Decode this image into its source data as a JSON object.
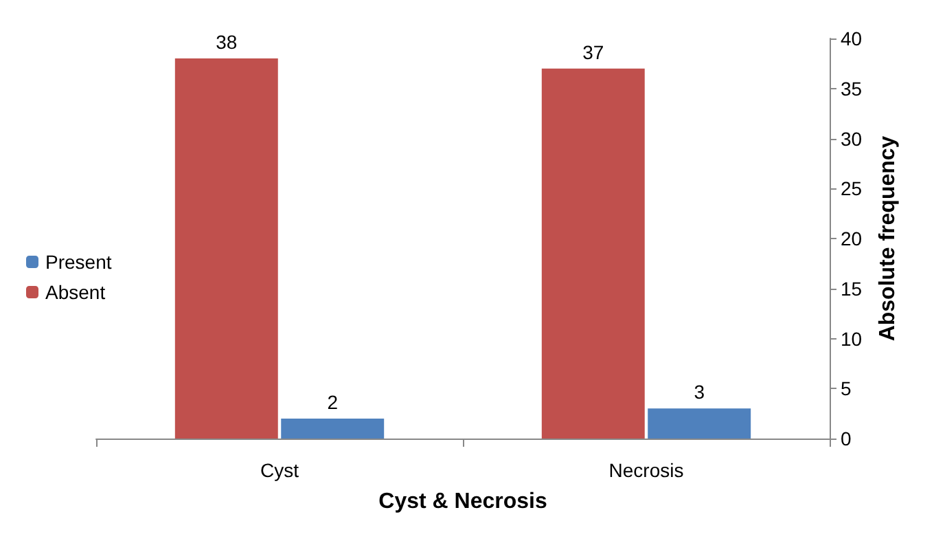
{
  "chart_data": {
    "type": "bar",
    "categories": [
      "Cyst",
      "Necrosis"
    ],
    "xlabel": "Cyst & Necrosis",
    "ylabel": "Absolute frequency",
    "series": [
      {
        "name": "Absent",
        "color": "#c0504d",
        "values": [
          38,
          37
        ]
      },
      {
        "name": "Present",
        "color": "#4f81bd",
        "values": [
          2,
          3
        ]
      }
    ],
    "ylim": [
      0,
      40
    ],
    "yticks": [
      0,
      5,
      10,
      15,
      20,
      25,
      30,
      35,
      40
    ],
    "grid": false,
    "legend": "left",
    "data_labels": true
  }
}
